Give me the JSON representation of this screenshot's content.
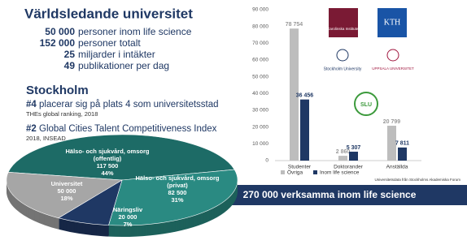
{
  "header": {
    "title": "Världsledande universitet"
  },
  "stats": [
    {
      "number": "50 000",
      "text": "personer inom life science"
    },
    {
      "number": "152 000",
      "text": "personer totalt"
    },
    {
      "number": "25",
      "text": "miljarder i intäkter"
    },
    {
      "number": "49",
      "text": "publikationer per dag"
    }
  ],
  "stockholm": {
    "title": "Stockholm",
    "rankings": [
      {
        "rank": "#4",
        "text": "placerar sig på plats 4 som universitetsstad",
        "source": "THEs global ranking, 2018"
      },
      {
        "rank": "#2",
        "text": "Global Cities Talent Competitiveness Index",
        "source": "2018, INSEAD"
      }
    ]
  },
  "banner": "270 000 verksamma inom life science",
  "logos": [
    {
      "text": "Karolinska Institutet"
    },
    {
      "text": "KTH"
    },
    {
      "text": "Stockholm University"
    },
    {
      "text": "UPPSALA UNIVERSITET"
    },
    {
      "text": "SLU"
    }
  ],
  "chart_data": [
    {
      "type": "pie",
      "categories": [
        "Hälso- och sjukvård, omsorg (offentlig)",
        "Hälso- och sjukvård, omsorg (privat)",
        "Näringsliv",
        "Universitet"
      ],
      "values": [
        117500,
        82500,
        20000,
        50000
      ],
      "value_labels": [
        "117 500",
        "82 500",
        "20 000",
        "50 000"
      ],
      "percents": [
        44,
        31,
        7,
        18
      ],
      "percent_labels": [
        "44%",
        "31%",
        "7%",
        "18%"
      ],
      "colors": [
        "#1d6b66",
        "#2a8a82",
        "#1f3864",
        "#a6a6a6"
      ]
    },
    {
      "type": "bar",
      "categories": [
        "Studenter",
        "Doktorander",
        "Anställda"
      ],
      "series": [
        {
          "name": "Övriga",
          "color": "#bdbdbd",
          "values": [
            78754,
            2860,
            20799
          ],
          "value_labels": [
            "78 754",
            "2 860",
            "20 799"
          ]
        },
        {
          "name": "Inom life science",
          "color": "#1f3864",
          "values": [
            36456,
            5307,
            7811
          ],
          "value_labels": [
            "36 456",
            "5 307",
            "7 811"
          ]
        }
      ],
      "ylim": [
        0,
        90000
      ],
      "yticks": [
        {
          "value": 0,
          "label": "0"
        },
        {
          "value": 10000,
          "label": "10 000"
        },
        {
          "value": 20000,
          "label": "20 000"
        },
        {
          "value": 30000,
          "label": "30 000"
        },
        {
          "value": 40000,
          "label": "40 000"
        },
        {
          "value": 50000,
          "label": "50 000"
        },
        {
          "value": 60000,
          "label": "60 000"
        },
        {
          "value": 70000,
          "label": "70 000"
        },
        {
          "value": 80000,
          "label": "80 000"
        },
        {
          "value": 90000,
          "label": "90 000"
        }
      ],
      "legend": "bottom",
      "source": "Universitetsdata från Stockholms Akademiska Forum"
    }
  ]
}
